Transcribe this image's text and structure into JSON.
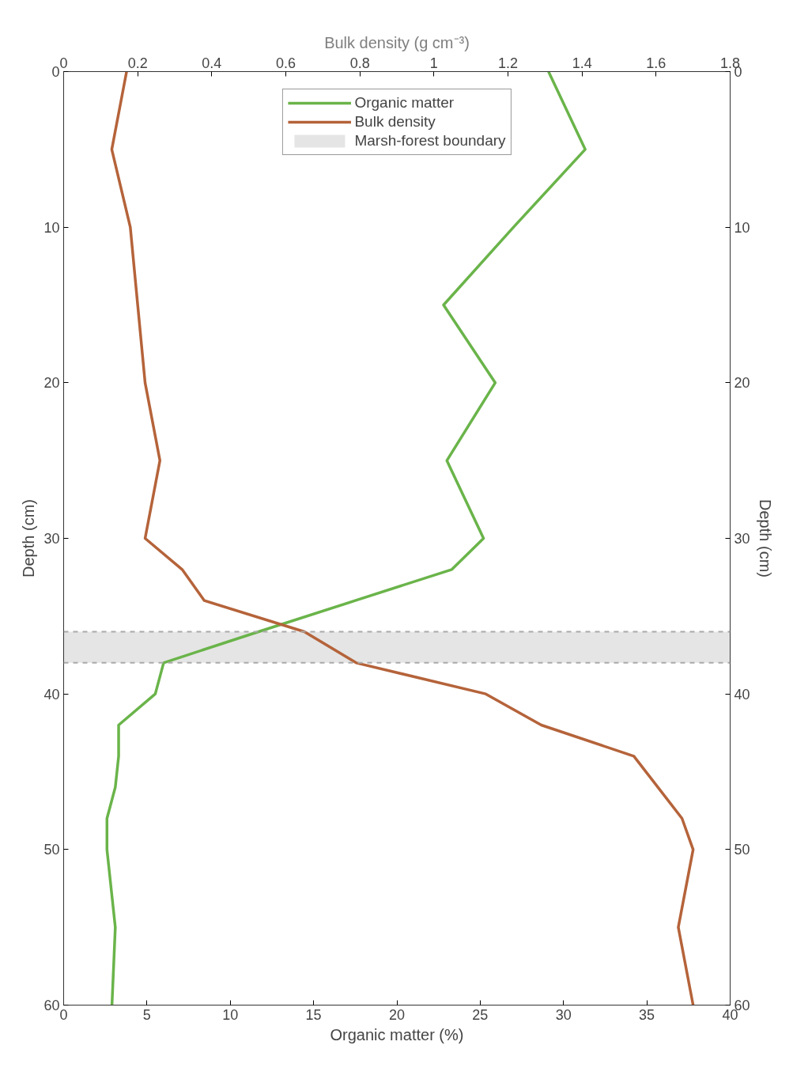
{
  "chart_data": {
    "type": "line",
    "xlabel": "Organic matter (%)",
    "x2label": "Bulk density (g cm⁻³)",
    "ylabel": "Depth (cm)",
    "y2label": "Depth (cm)",
    "xlim": [
      0,
      40
    ],
    "xticks": [
      0,
      5,
      10,
      15,
      20,
      25,
      30,
      35,
      40
    ],
    "x2lim": [
      0,
      1.8
    ],
    "x2ticks": [
      0,
      0.2,
      0.4,
      0.6,
      0.8,
      1,
      1.2,
      1.4,
      1.6,
      1.8
    ],
    "ylim": [
      60,
      0
    ],
    "yticks": [
      0,
      10,
      20,
      30,
      40,
      50,
      60
    ],
    "y2lim": [
      60,
      0
    ],
    "y2ticks": [
      0,
      10,
      20,
      30,
      40,
      50,
      60
    ],
    "series": [
      {
        "name": "Organic matter",
        "color": "#6ab44a",
        "x": [
          29.1,
          31.3,
          27.0,
          22.8,
          25.9,
          23.0,
          25.2,
          23.3,
          17.5,
          11.7,
          6.0,
          5.5,
          3.3,
          3.3,
          3.1,
          2.6,
          2.6,
          3.1,
          2.9
        ],
        "values": [
          0,
          5,
          10,
          15,
          20,
          25,
          30,
          32,
          34,
          36,
          38,
          40,
          42,
          44,
          46,
          48,
          50,
          55,
          60
        ]
      },
      {
        "name": "Bulk density",
        "color": "#b5633a",
        "axis": "x2",
        "x": [
          0.17,
          0.13,
          0.18,
          0.2,
          0.22,
          0.26,
          0.22,
          0.32,
          0.38,
          0.65,
          0.79,
          1.14,
          1.29,
          1.54,
          1.67,
          1.7,
          1.66,
          1.7
        ],
        "values": [
          0,
          5,
          10,
          15,
          20,
          25,
          30,
          32,
          34,
          36,
          38,
          40,
          42,
          44,
          48,
          50,
          55,
          60
        ]
      }
    ],
    "bands": [
      {
        "axis": "y",
        "from": 36,
        "to": 38,
        "label": "Marsh-forest boundary",
        "color": "#dcdcdc"
      }
    ],
    "ref_lines": [
      {
        "axis": "y",
        "value": 36,
        "color": "#aaaaaa",
        "line_style": "dashed"
      },
      {
        "axis": "y",
        "value": 38,
        "color": "#aaaaaa",
        "line_style": "dashed"
      }
    ],
    "legend": "top",
    "grid": false,
    "line_style": "solid",
    "marker": "none"
  }
}
